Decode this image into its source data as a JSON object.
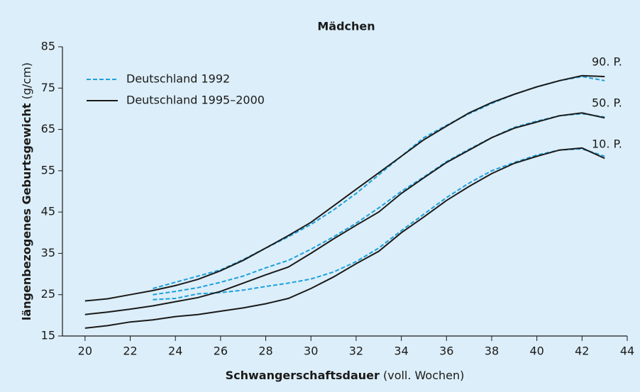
{
  "chart_data": {
    "type": "line",
    "title": "Mädchen",
    "xlabel": "Schwangerschaftsdauer",
    "xlabel_note": "(voll. Wochen)",
    "ylabel": "längenbezogenes Geburtsgewicht",
    "ylabel_note": "(g/cm)",
    "x": [
      20,
      21,
      22,
      23,
      24,
      25,
      26,
      27,
      28,
      29,
      30,
      31,
      32,
      33,
      34,
      35,
      36,
      37,
      38,
      39,
      40,
      41,
      42,
      43
    ],
    "xlim": [
      19,
      44
    ],
    "xticks": [
      20,
      22,
      24,
      26,
      28,
      30,
      32,
      34,
      36,
      38,
      40,
      42,
      44
    ],
    "ylim": [
      15,
      85
    ],
    "yticks": [
      15,
      25,
      35,
      45,
      55,
      65,
      75,
      85
    ],
    "line_labels": [
      "90. P.",
      "50. P.",
      "10. P."
    ],
    "series": [
      {
        "name": "Deutschland 1992",
        "color": "#1ea0dc",
        "dashed": true,
        "lines": [
          [
            null,
            null,
            null,
            26.5,
            28,
            29.5,
            31,
            33.5,
            36.3,
            39,
            42,
            45.5,
            49.5,
            54,
            58.5,
            63,
            66,
            68.8,
            71.3,
            73.5,
            75.3,
            76.8,
            77.8,
            76.8
          ],
          [
            null,
            null,
            null,
            25,
            25.8,
            26.7,
            28,
            29.5,
            31.5,
            33.3,
            36,
            39,
            42.3,
            46,
            50,
            53.5,
            57.2,
            60.2,
            63,
            65.5,
            67,
            68.3,
            68.8,
            68
          ],
          [
            null,
            null,
            null,
            23.8,
            24.1,
            25.2,
            25.5,
            26.1,
            27,
            27.8,
            28.8,
            30.5,
            33,
            36.3,
            40.5,
            44.5,
            48.5,
            52,
            55,
            57,
            58.8,
            60,
            60.3,
            58.5
          ]
        ]
      },
      {
        "name": "Deutschland 1995–2000",
        "color": "#1a1a1a",
        "dashed": false,
        "lines": [
          [
            23.5,
            24,
            25,
            26,
            27.2,
            28.7,
            30.8,
            33.3,
            36.3,
            39.3,
            42.5,
            46.5,
            50.5,
            54.5,
            58.5,
            62.5,
            65.8,
            69,
            71.5,
            73.5,
            75.3,
            76.8,
            78,
            77.8
          ],
          [
            20.2,
            20.8,
            21.5,
            22.3,
            23.3,
            24.3,
            25.8,
            27.8,
            29.8,
            31.7,
            35,
            38.5,
            41.8,
            45,
            49.5,
            53.3,
            57,
            60,
            63,
            65.3,
            66.8,
            68.3,
            69,
            67.8
          ],
          [
            16.9,
            17.5,
            18.4,
            18.9,
            19.7,
            20.2,
            21,
            21.8,
            22.8,
            24.1,
            26.5,
            29.3,
            32.5,
            35.5,
            40,
            43.8,
            47.8,
            51.2,
            54.3,
            56.8,
            58.5,
            60,
            60.5,
            58
          ]
        ]
      }
    ]
  }
}
